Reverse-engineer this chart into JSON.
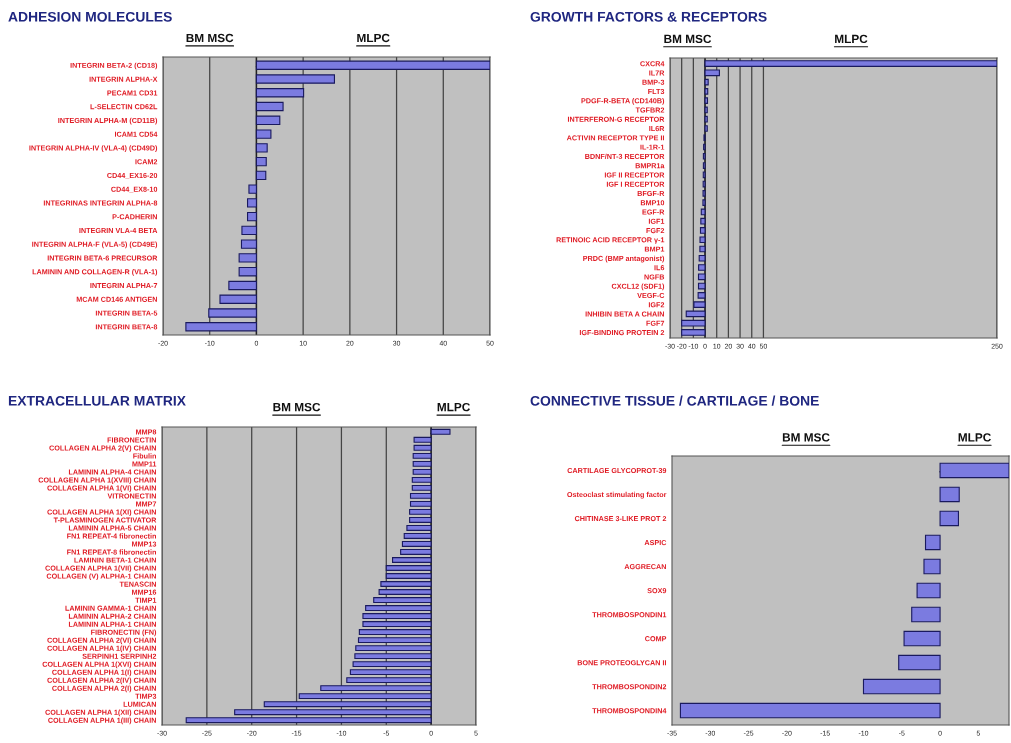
{
  "chart_data": [
    {
      "type": "bar",
      "orientation": "horizontal",
      "title": "ADHESION MOLECULES",
      "annotations": [
        "BM MSC",
        "MLPC"
      ],
      "color": "#7b7be0",
      "grid": "x",
      "xlim": [
        -20,
        50
      ],
      "xticks": [
        -20,
        -10,
        0,
        10,
        20,
        30,
        40,
        50
      ],
      "categories": [
        "INTEGRIN BETA-2 (CD18)",
        "INTEGRIN ALPHA-X",
        "PECAM1 CD31",
        "L-SELECTIN CD62L",
        "INTEGRIN ALPHA-M (CD11B)",
        "ICAM1 CD54",
        "INTEGRIN ALPHA-IV (VLA-4) (CD49D)",
        "ICAM2",
        "CD44_EX16-20",
        "CD44_EX8-10",
        "INTEGRINAS INTEGRIN ALPHA-8",
        "P-CADHERIN",
        "INTEGRIN VLA-4 BETA",
        "INTEGRIN ALPHA-F (VLA-5) (CD49E)",
        "INTEGRIN BETA-6 PRECURSOR",
        "LAMININ AND COLLAGEN-R (VLA-1)",
        "INTEGRIN ALPHA-7",
        "MCAM CD146 ANTIGEN",
        "INTEGRIN BETA-5",
        "INTEGRIN BETA-8"
      ],
      "values": [
        50,
        16.7,
        10.1,
        5.7,
        5.0,
        3.1,
        2.3,
        2.1,
        2.0,
        -1.6,
        -1.9,
        -1.9,
        -3.1,
        -3.2,
        -3.7,
        -3.7,
        -5.9,
        -7.8,
        -10.2,
        -15.1
      ]
    },
    {
      "type": "bar",
      "orientation": "horizontal",
      "title": "GROWTH FACTORS & RECEPTORS",
      "annotations": [
        "BM MSC",
        "MLPC"
      ],
      "color": "#7b7be0",
      "grid": "x",
      "xlim": [
        -30,
        250
      ],
      "xticks": [
        -30,
        -20,
        -10,
        0,
        10,
        20,
        30,
        40,
        50,
        250
      ],
      "categories": [
        "CXCR4",
        "IL7R",
        "BMP-3",
        "FLT3",
        "PDGF-R-BETA (CD140B)",
        "TGFBR2",
        "INTERFERON-G RECEPTOR",
        "IL6R",
        "ACTIVIN RECEPTOR TYPE II",
        "IL-1R-1",
        "BDNF/NT-3 RECEPTOR",
        "BMPR1a",
        "IGF II RECEPTOR",
        "IGF I RECEPTOR",
        "BFGF-R",
        "BMP10",
        "EGF-R",
        "IGF1",
        "FGF2",
        "RETINOIC ACID RECEPTOR γ-1",
        "BMP1",
        "PRDC (BMP antagonist)",
        "IL6",
        "NGFB",
        "CXCL12 (SDF1)",
        "VEGF-C",
        "IGF2",
        "INHIBIN BETA A CHAIN",
        "FGF7",
        "IGF-BINDING PROTEIN 2"
      ],
      "values": [
        250,
        12.3,
        2.7,
        2.3,
        2.1,
        1.9,
        1.9,
        1.9,
        -0.9,
        -1.2,
        -1.4,
        -1.4,
        -1.5,
        -1.6,
        -1.7,
        -1.8,
        -3.2,
        -3.6,
        -3.9,
        -4.3,
        -4.4,
        -5.0,
        -5.5,
        -5.6,
        -5.6,
        -5.9,
        -9.5,
        -16.1,
        -20.0,
        -20.0
      ]
    },
    {
      "type": "bar",
      "orientation": "horizontal",
      "title": "EXTRACELLULAR MATRIX",
      "annotations": [
        "BM MSC",
        "MLPC"
      ],
      "color": "#7b7be0",
      "grid": "x",
      "xlim": [
        -30,
        5
      ],
      "xticks": [
        -30,
        -25,
        -20,
        -15,
        -10,
        -5,
        0,
        5
      ],
      "categories": [
        "MMP8",
        "FIBRONECTIN",
        "COLLAGEN ALPHA 2(V) CHAIN",
        "Fibulin",
        "MMP11",
        "LAMININ ALPHA-4 CHAIN",
        "COLLAGEN ALPHA 1(XVIII) CHAIN",
        "COLLAGEN ALPHA 1(VI) CHAIN",
        "VITRONECTIN",
        "MMP7",
        "COLLAGEN ALPHA 1(XI) CHAIN",
        "T-PLASMINOGEN ACTIVATOR",
        "LAMININ ALPHA-5 CHAIN",
        "FN1 REPEAT-4 fibronectin",
        "MMP13",
        "FN1 REPEAT-8 fibronectin",
        "LAMININ BETA-1 CHAIN",
        "COLLAGEN ALPHA 1(VII) CHAIN",
        "COLLAGEN (V) ALPHA-1 CHAIN",
        "TENASCIN",
        "MMP16",
        "TIMP1",
        "LAMININ GAMMA-1 CHAIN",
        "LAMININ ALPHA-2 CHAIN",
        "LAMININ ALPHA-1 CHAIN",
        "FIBRONECTIN (FN)",
        "COLLAGEN ALPHA 2(VI) CHAIN",
        "COLLAGEN ALPHA 1(IV) CHAIN",
        "SERPINH1 SERPINH2",
        "COLLAGEN ALPHA 1(XVI) CHAIN",
        "COLLAGEN ALPHA 1(I) CHAIN",
        "COLLAGEN ALPHA 2(IV) CHAIN",
        "COLLAGEN ALPHA 2(I) CHAIN",
        "TIMP3",
        "LUMICAN",
        "COLLAGEN ALPHA 1(XII) CHAIN",
        "COLLAGEN ALPHA 1(III) CHAIN"
      ],
      "values": [
        2.1,
        -1.9,
        -1.9,
        -2.0,
        -2.0,
        -2.0,
        -2.1,
        -2.1,
        -2.3,
        -2.3,
        -2.4,
        -2.4,
        -2.7,
        -3.0,
        -3.2,
        -3.4,
        -4.3,
        -5.0,
        -5.0,
        -5.6,
        -5.8,
        -6.4,
        -7.3,
        -7.6,
        -7.6,
        -8.0,
        -8.1,
        -8.4,
        -8.5,
        -8.7,
        -9.0,
        -9.4,
        -12.3,
        -14.7,
        -18.6,
        -21.9,
        -27.3
      ]
    },
    {
      "type": "bar",
      "orientation": "horizontal",
      "title": "CONNECTIVE TISSUE / CARTILAGE / BONE",
      "annotations": [
        "BM MSC",
        "MLPC"
      ],
      "color": "#7b7be0",
      "grid": false,
      "xlim": [
        -35,
        9
      ],
      "xticks": [
        -35,
        -30,
        -25,
        -20,
        -15,
        -10,
        -5,
        0,
        5
      ],
      "categories": [
        "CARTILAGE GLYCOPROT-39",
        "Osteoclast stimulating factor",
        "CHITINASE 3-LIKE PROT 2",
        "ASPIC",
        "AGGRECAN",
        "SOX9",
        "THROMBOSPONDIN1",
        "COMP",
        "BONE PROTEOGLYCAN II",
        "THROMBOSPONDIN2",
        "THROMBOSPONDIN4"
      ],
      "values": [
        9,
        2.5,
        2.4,
        -1.9,
        -2.1,
        -3.0,
        -3.7,
        -4.7,
        -5.4,
        -10.0,
        -33.9
      ]
    }
  ]
}
